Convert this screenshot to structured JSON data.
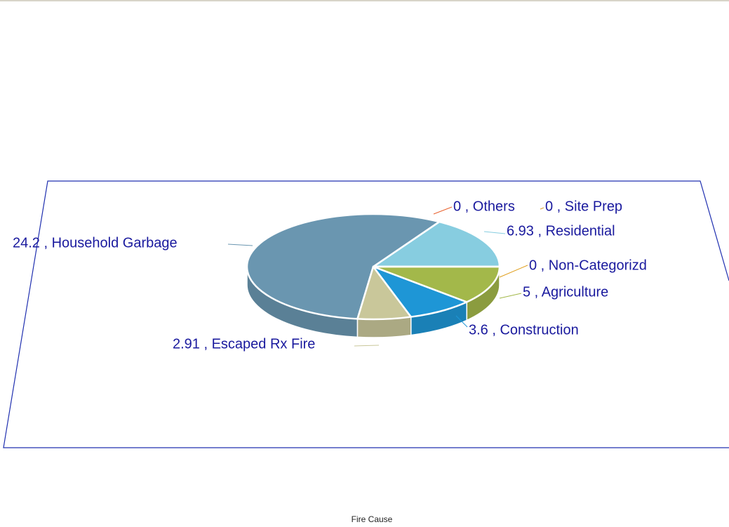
{
  "chart_data": {
    "type": "pie",
    "title": "Fire Cause",
    "values": [
      6.93,
      0,
      0,
      24.2,
      2.91,
      3.6,
      5,
      0
    ],
    "value_labels": [
      "6.93 , Residential",
      "0 , Others",
      "0 , Site Prep",
      "24.2 , Household Garbage",
      "2.91 , Escaped Rx Fire",
      "3.6 , Construction",
      "5 , Agriculture",
      "0 , Non-Categorizd"
    ],
    "colors": [
      "#87cde0",
      "#e8602c",
      "#d9a030",
      "#6a96b0",
      "#c9c79a",
      "#1e96d6",
      "#a3b84a",
      "#e0a020"
    ]
  }
}
